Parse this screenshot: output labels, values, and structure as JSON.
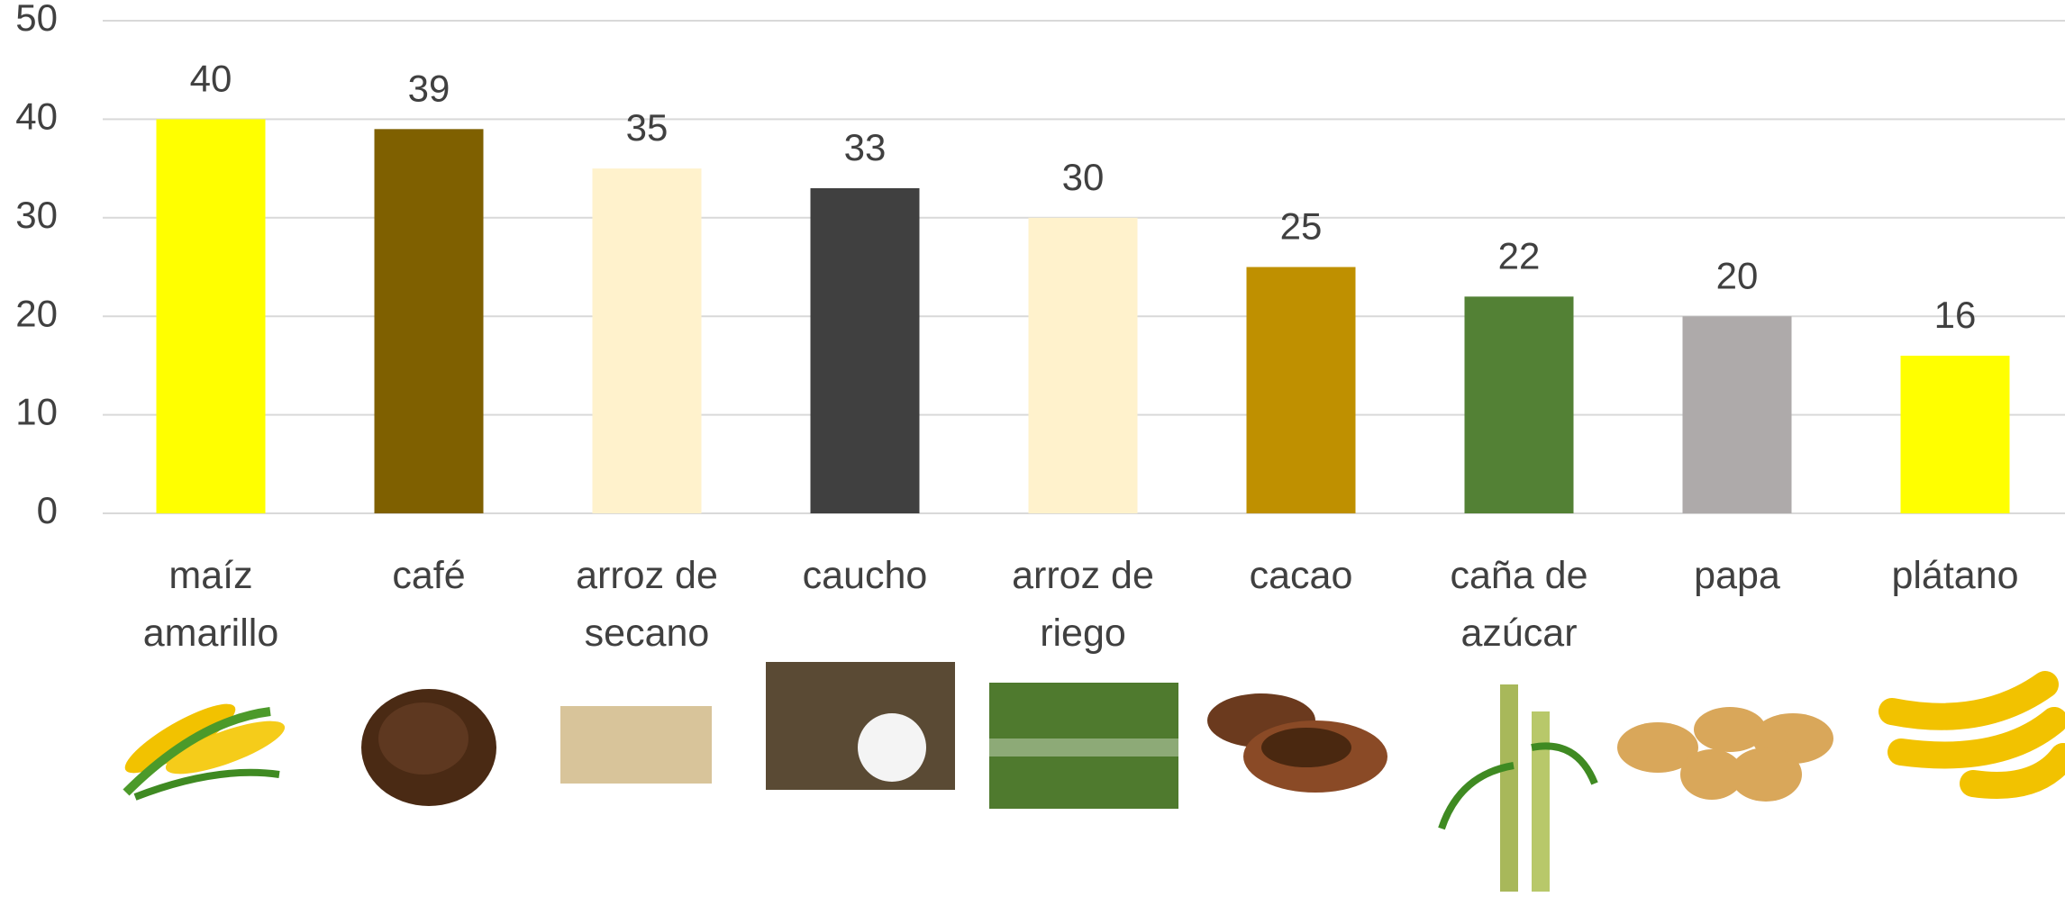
{
  "chart_data": {
    "type": "bar",
    "categories": [
      "maíz amarillo",
      "café",
      "arroz de secano",
      "caucho",
      "arroz de riego",
      "cacao",
      "caña de azúcar",
      "papa",
      "plátano"
    ],
    "values": [
      40,
      39,
      35,
      33,
      30,
      25,
      22,
      20,
      16
    ],
    "colors": [
      "#ffff00",
      "#7f6000",
      "#fff2cc",
      "#404040",
      "#fff2cc",
      "#bf9000",
      "#538135",
      "#aeaaaa",
      "#ffff00"
    ],
    "ylim": [
      0,
      50
    ],
    "yticks": [
      0,
      10,
      20,
      30,
      40,
      50
    ],
    "grid": true
  }
}
